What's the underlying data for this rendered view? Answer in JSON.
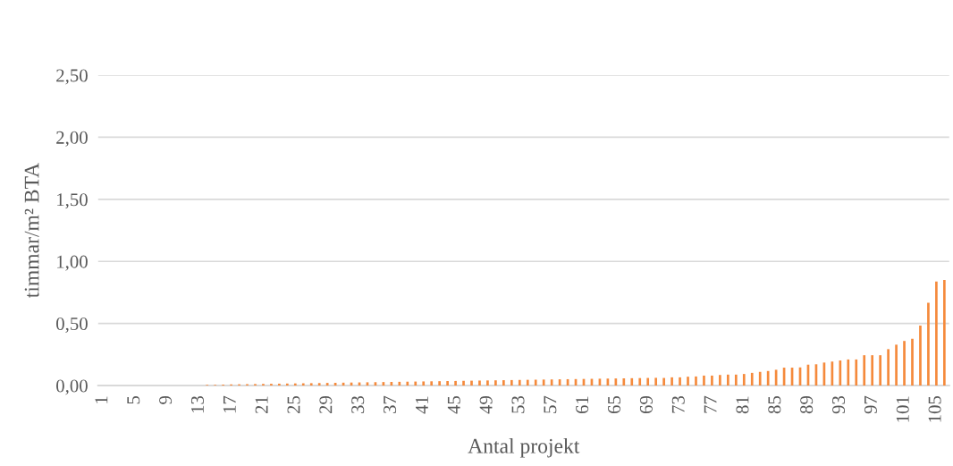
{
  "chart_data": {
    "type": "bar",
    "xlabel": "Antal projekt",
    "ylabel": "timmar/m² BTA",
    "categories": [
      "1",
      null,
      null,
      null,
      "5",
      null,
      null,
      null,
      "9",
      null,
      null,
      null,
      "13",
      null,
      null,
      null,
      "17",
      null,
      null,
      null,
      "21",
      null,
      null,
      null,
      "25",
      null,
      null,
      null,
      "29",
      null,
      null,
      null,
      "33",
      null,
      null,
      null,
      "37",
      null,
      null,
      null,
      "41",
      null,
      null,
      null,
      "45",
      null,
      null,
      null,
      "49",
      null,
      null,
      null,
      "53",
      null,
      null,
      null,
      "57",
      null,
      null,
      null,
      "61",
      null,
      null,
      null,
      "65",
      null,
      null,
      null,
      "69",
      null,
      null,
      null,
      "73",
      null,
      null,
      null,
      "77",
      null,
      null,
      null,
      "81",
      null,
      null,
      null,
      "85",
      null,
      null,
      null,
      "89",
      null,
      null,
      null,
      "93",
      null,
      null,
      null,
      "97",
      null,
      null,
      null,
      "101",
      null,
      null,
      null,
      "105",
      null
    ],
    "values": [
      0,
      0,
      0,
      0,
      0,
      0,
      0,
      0,
      0,
      0,
      0,
      0,
      0,
      0.005,
      0.006,
      0.008,
      0.009,
      0.01,
      0.011,
      0.012,
      0.013,
      0.014,
      0.015,
      0.016,
      0.017,
      0.018,
      0.019,
      0.02,
      0.021,
      0.022,
      0.023,
      0.024,
      0.025,
      0.026,
      0.027,
      0.028,
      0.029,
      0.03,
      0.031,
      0.032,
      0.033,
      0.034,
      0.035,
      0.036,
      0.037,
      0.038,
      0.039,
      0.04,
      0.041,
      0.042,
      0.043,
      0.044,
      0.045,
      0.046,
      0.047,
      0.048,
      0.049,
      0.05,
      0.051,
      0.052,
      0.053,
      0.054,
      0.055,
      0.056,
      0.057,
      0.058,
      0.059,
      0.06,
      0.061,
      0.062,
      0.061,
      0.066,
      0.066,
      0.071,
      0.073,
      0.08,
      0.08,
      0.085,
      0.088,
      0.088,
      0.093,
      0.102,
      0.11,
      0.117,
      0.127,
      0.144,
      0.144,
      0.146,
      0.168,
      0.171,
      0.185,
      0.193,
      0.202,
      0.21,
      0.21,
      0.244,
      0.244,
      0.244,
      0.293,
      0.329,
      0.359,
      0.376,
      0.483,
      0.666,
      0.837,
      0.851
    ],
    "color": "#f58a3c",
    "ylim": [
      0,
      2.5
    ],
    "yticks": [
      {
        "value": 0,
        "label": "0,00"
      },
      {
        "value": 0.5,
        "label": "0,50"
      },
      {
        "value": 1,
        "label": "1,00"
      },
      {
        "value": 1.5,
        "label": "1,50"
      },
      {
        "value": 2,
        "label": "2,00"
      },
      {
        "value": 2.5,
        "label": "2,50"
      }
    ],
    "grid": "y"
  }
}
